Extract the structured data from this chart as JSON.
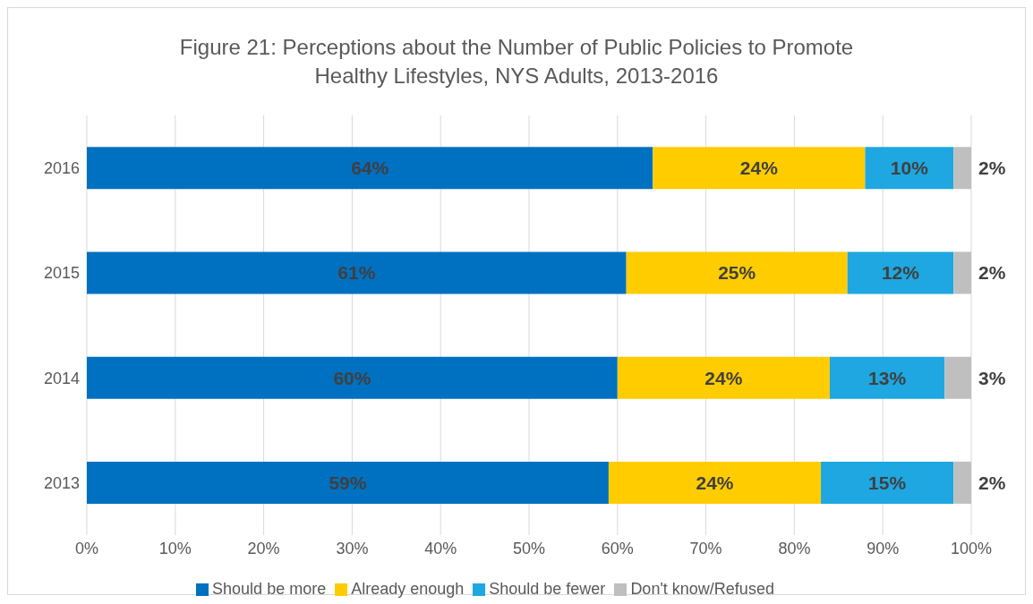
{
  "chart_data": {
    "type": "bar",
    "orientation": "horizontal",
    "stacked": true,
    "title": "Figure 21: Perceptions about the Number of Public Policies to Promote Healthy Lifestyles, NYS Adults, 2013-2016",
    "categories": [
      "2016",
      "2015",
      "2014",
      "2013"
    ],
    "series": [
      {
        "name": "Should be more",
        "color": "#0070c0",
        "values": [
          64,
          61,
          60,
          59
        ],
        "value_labels": [
          "64%",
          "61%",
          "60%",
          "59%"
        ]
      },
      {
        "name": "Already enough",
        "color": "#ffcc00",
        "values": [
          24,
          25,
          24,
          24
        ],
        "value_labels": [
          "24%",
          "25%",
          "24%",
          "24%"
        ]
      },
      {
        "name": "Should be fewer",
        "color": "#1ea7e0",
        "values": [
          10,
          12,
          13,
          15
        ],
        "value_labels": [
          "10%",
          "12%",
          "13%",
          "15%"
        ]
      },
      {
        "name": "Don't know/Refused",
        "color": "#bfbfbf",
        "values": [
          2,
          2,
          3,
          2
        ],
        "value_labels": [
          "2%",
          "2%",
          "3%",
          "2%"
        ]
      }
    ],
    "xlim": [
      0,
      100
    ],
    "xticks": [
      {
        "value": 0,
        "label": "0%"
      },
      {
        "value": 10,
        "label": "10%"
      },
      {
        "value": 20,
        "label": "20%"
      },
      {
        "value": 30,
        "label": "30%"
      },
      {
        "value": 40,
        "label": "40%"
      },
      {
        "value": 50,
        "label": "50%"
      },
      {
        "value": 60,
        "label": "60%"
      },
      {
        "value": 70,
        "label": "70%"
      },
      {
        "value": 80,
        "label": "80%"
      },
      {
        "value": 90,
        "label": "90%"
      },
      {
        "value": 100,
        "label": "100%"
      }
    ],
    "grid": "x",
    "legend": "bottom"
  }
}
